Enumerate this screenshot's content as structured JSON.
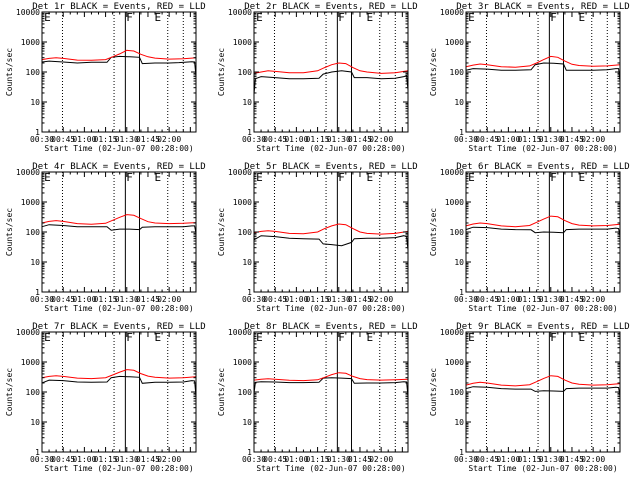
{
  "figure": {
    "xlabel": "Start Time (02-Jun-07 00:28:00)",
    "ylabel": "Counts/sec",
    "x_ticks": [
      "00:30",
      "00:45",
      "01:00",
      "01:15",
      "01:30",
      "01:45",
      "02:00"
    ],
    "y_ticks": [
      "1",
      "10",
      "100",
      "1000",
      "10000"
    ],
    "colors": {
      "events": "#000000",
      "lld": "#ff0000",
      "axes": "#000000"
    }
  },
  "chart_data": [
    {
      "type": "line",
      "title": "Det 1r BLACK = Events, RED = LLD",
      "markers": [
        "E",
        "F",
        "E"
      ],
      "x_range": [
        30,
        139
      ],
      "ylim": [
        1,
        10000
      ],
      "dotted_lines_min": [
        44.5,
        81,
        119,
        130
      ],
      "solid_lines_min": [
        89,
        99
      ],
      "series": [
        {
          "name": "Events",
          "color": "#000000",
          "x": [
            30,
            35,
            45,
            55,
            65,
            76,
            79,
            85,
            92,
            99,
            101,
            110,
            120,
            127,
            136,
            138,
            139
          ],
          "values": [
            215,
            230,
            215,
            200,
            210,
            210,
            310,
            330,
            320,
            310,
            190,
            200,
            200,
            205,
            220,
            215,
            70
          ]
        },
        {
          "name": "LLD",
          "color": "#ff0000",
          "x": [
            30,
            35,
            40,
            45,
            55,
            65,
            75,
            80,
            85,
            90,
            95,
            100,
            105,
            110,
            120,
            130,
            136,
            139
          ],
          "values": [
            260,
            285,
            300,
            285,
            250,
            245,
            260,
            320,
            400,
            530,
            500,
            390,
            320,
            290,
            270,
            275,
            290,
            300
          ]
        }
      ]
    },
    {
      "type": "line",
      "title": "Det 2r BLACK = Events, RED = LLD",
      "markers": [
        "E",
        "F",
        "E"
      ],
      "x_range": [
        30,
        139
      ],
      "ylim": [
        1,
        10000
      ],
      "dotted_lines_min": [
        44.5,
        81,
        119,
        130
      ],
      "solid_lines_min": [
        89,
        99
      ],
      "series": [
        {
          "name": "Events",
          "color": "#000000",
          "x": [
            30,
            31,
            35,
            45,
            55,
            65,
            76,
            79,
            85,
            92,
            99,
            101,
            110,
            120,
            130,
            136,
            138,
            139
          ],
          "values": [
            18,
            60,
            70,
            65,
            60,
            60,
            62,
            85,
            100,
            110,
            100,
            65,
            65,
            60,
            62,
            70,
            75,
            25
          ]
        },
        {
          "name": "LLD",
          "color": "#ff0000",
          "x": [
            30,
            35,
            40,
            45,
            55,
            65,
            75,
            80,
            85,
            90,
            95,
            100,
            105,
            110,
            120,
            130,
            139
          ],
          "values": [
            90,
            100,
            110,
            105,
            95,
            95,
            110,
            140,
            175,
            200,
            190,
            140,
            110,
            100,
            90,
            95,
            110
          ]
        }
      ]
    },
    {
      "type": "line",
      "title": "Det 3r BLACK = Events, RED = LLD",
      "markers": [
        "E",
        "F",
        "E"
      ],
      "x_range": [
        30,
        139
      ],
      "ylim": [
        1,
        10000
      ],
      "dotted_lines_min": [
        44.5,
        81,
        119,
        130
      ],
      "solid_lines_min": [
        89,
        99
      ],
      "series": [
        {
          "name": "Events",
          "color": "#000000",
          "x": [
            30,
            35,
            45,
            55,
            65,
            76,
            79,
            85,
            92,
            99,
            101,
            110,
            120,
            130,
            136,
            138,
            139
          ],
          "values": [
            115,
            130,
            125,
            115,
            115,
            118,
            175,
            200,
            195,
            185,
            115,
            115,
            115,
            118,
            130,
            130,
            50
          ]
        },
        {
          "name": "LLD",
          "color": "#ff0000",
          "x": [
            30,
            35,
            40,
            45,
            55,
            65,
            75,
            80,
            85,
            90,
            95,
            100,
            105,
            110,
            120,
            130,
            139
          ],
          "values": [
            150,
            170,
            185,
            175,
            150,
            145,
            160,
            200,
            260,
            330,
            310,
            230,
            180,
            165,
            155,
            160,
            175
          ]
        }
      ]
    },
    {
      "type": "line",
      "title": "Det 4r BLACK = Events, RED = LLD",
      "markers": [
        "E",
        "F",
        "E"
      ],
      "x_range": [
        30,
        139
      ],
      "ylim": [
        1,
        10000
      ],
      "dotted_lines_min": [
        44.5,
        81,
        119,
        130
      ],
      "solid_lines_min": [
        89,
        99
      ],
      "series": [
        {
          "name": "Events",
          "color": "#000000",
          "x": [
            30,
            35,
            45,
            55,
            65,
            76,
            79,
            85,
            92,
            99,
            101,
            110,
            120,
            130,
            136,
            138,
            139
          ],
          "values": [
            150,
            175,
            165,
            150,
            150,
            150,
            115,
            125,
            125,
            120,
            145,
            150,
            150,
            150,
            160,
            160,
            90
          ]
        },
        {
          "name": "LLD",
          "color": "#ff0000",
          "x": [
            30,
            35,
            40,
            45,
            55,
            65,
            75,
            80,
            85,
            90,
            95,
            100,
            105,
            110,
            120,
            130,
            139
          ],
          "values": [
            200,
            225,
            240,
            225,
            190,
            180,
            195,
            245,
            310,
            380,
            360,
            280,
            220,
            200,
            190,
            195,
            205
          ]
        }
      ]
    },
    {
      "type": "line",
      "title": "Det 5r BLACK = Events, RED = LLD",
      "markers": [
        "E",
        "F",
        "E"
      ],
      "x_range": [
        30,
        139
      ],
      "ylim": [
        1,
        10000
      ],
      "dotted_lines_min": [
        44.5,
        81,
        119,
        130
      ],
      "solid_lines_min": [
        89,
        99
      ],
      "series": [
        {
          "name": "Events",
          "color": "#000000",
          "x": [
            30,
            35,
            45,
            55,
            65,
            76,
            79,
            85,
            92,
            99,
            101,
            110,
            120,
            130,
            136,
            138,
            139
          ],
          "values": [
            55,
            75,
            70,
            62,
            60,
            58,
            40,
            38,
            35,
            45,
            60,
            62,
            62,
            65,
            75,
            70,
            25
          ]
        },
        {
          "name": "LLD",
          "color": "#ff0000",
          "x": [
            30,
            35,
            40,
            45,
            55,
            65,
            75,
            80,
            85,
            90,
            95,
            100,
            105,
            110,
            120,
            130,
            139
          ],
          "values": [
            95,
            105,
            110,
            105,
            90,
            88,
            100,
            130,
            160,
            185,
            175,
            130,
            100,
            90,
            85,
            90,
            105
          ]
        }
      ]
    },
    {
      "type": "line",
      "title": "Det 6r BLACK = Events, RED = LLD",
      "markers": [
        "E",
        "F",
        "E"
      ],
      "x_range": [
        30,
        139
      ],
      "ylim": [
        1,
        10000
      ],
      "dotted_lines_min": [
        44.5,
        81,
        119,
        130
      ],
      "solid_lines_min": [
        89,
        99
      ],
      "series": [
        {
          "name": "Events",
          "color": "#000000",
          "x": [
            30,
            35,
            45,
            55,
            65,
            76,
            79,
            85,
            92,
            99,
            101,
            110,
            120,
            130,
            136,
            138,
            139
          ],
          "values": [
            120,
            145,
            140,
            125,
            120,
            118,
            95,
            100,
            98,
            95,
            120,
            125,
            125,
            125,
            135,
            130,
            70
          ]
        },
        {
          "name": "LLD",
          "color": "#ff0000",
          "x": [
            30,
            35,
            40,
            45,
            55,
            65,
            75,
            80,
            85,
            90,
            95,
            100,
            105,
            110,
            120,
            130,
            139
          ],
          "values": [
            160,
            185,
            200,
            190,
            160,
            150,
            165,
            210,
            270,
            340,
            320,
            240,
            190,
            170,
            160,
            165,
            180
          ]
        }
      ]
    },
    {
      "type": "line",
      "title": "Det 7r BLACK = Events, RED = LLD",
      "markers": [
        "E",
        "F",
        "E"
      ],
      "x_range": [
        30,
        139
      ],
      "ylim": [
        1,
        10000
      ],
      "dotted_lines_min": [
        44.5,
        81,
        119,
        130
      ],
      "solid_lines_min": [
        89,
        99
      ],
      "series": [
        {
          "name": "Events",
          "color": "#000000",
          "x": [
            30,
            35,
            45,
            55,
            65,
            76,
            79,
            85,
            92,
            99,
            101,
            110,
            120,
            130,
            136,
            138,
            139
          ],
          "values": [
            200,
            250,
            240,
            215,
            210,
            215,
            300,
            330,
            320,
            310,
            195,
            210,
            210,
            215,
            240,
            235,
            70
          ]
        },
        {
          "name": "LLD",
          "color": "#ff0000",
          "x": [
            30,
            35,
            40,
            45,
            55,
            65,
            75,
            80,
            85,
            90,
            95,
            100,
            105,
            110,
            120,
            130,
            139
          ],
          "values": [
            300,
            330,
            350,
            330,
            290,
            280,
            300,
            370,
            460,
            560,
            530,
            410,
            340,
            310,
            290,
            300,
            320
          ]
        }
      ]
    },
    {
      "type": "line",
      "title": "Det 8r BLACK = Events, RED = LLD",
      "markers": [
        "E",
        "F",
        "E"
      ],
      "x_range": [
        30,
        139
      ],
      "ylim": [
        1,
        10000
      ],
      "dotted_lines_min": [
        44.5,
        81,
        119,
        130
      ],
      "solid_lines_min": [
        89,
        99
      ],
      "series": [
        {
          "name": "Events",
          "color": "#000000",
          "x": [
            30,
            31,
            35,
            45,
            55,
            65,
            76,
            79,
            85,
            92,
            99,
            101,
            110,
            120,
            130,
            136,
            138,
            139
          ],
          "values": [
            90,
            210,
            220,
            215,
            205,
            205,
            210,
            290,
            300,
            290,
            280,
            195,
            200,
            200,
            205,
            220,
            215,
            70
          ]
        },
        {
          "name": "LLD",
          "color": "#ff0000",
          "x": [
            30,
            35,
            40,
            45,
            55,
            65,
            75,
            80,
            85,
            90,
            95,
            100,
            105,
            110,
            120,
            130,
            139
          ],
          "values": [
            250,
            265,
            275,
            265,
            245,
            240,
            255,
            310,
            380,
            440,
            420,
            330,
            280,
            260,
            250,
            255,
            265
          ]
        }
      ]
    },
    {
      "type": "line",
      "title": "Det 9r BLACK = Events, RED = LLD",
      "markers": [
        "E",
        "F",
        "E"
      ],
      "x_range": [
        30,
        139
      ],
      "ylim": [
        1,
        10000
      ],
      "dotted_lines_min": [
        44.5,
        81,
        119,
        130
      ],
      "solid_lines_min": [
        89,
        99
      ],
      "series": [
        {
          "name": "Events",
          "color": "#000000",
          "x": [
            30,
            35,
            45,
            55,
            65,
            76,
            79,
            85,
            92,
            99,
            101,
            110,
            120,
            130,
            136,
            138,
            139
          ],
          "values": [
            130,
            150,
            145,
            130,
            125,
            125,
            105,
            110,
            108,
            105,
            130,
            135,
            135,
            135,
            145,
            140,
            70
          ]
        },
        {
          "name": "LLD",
          "color": "#ff0000",
          "x": [
            30,
            35,
            40,
            45,
            55,
            65,
            75,
            80,
            85,
            90,
            95,
            100,
            105,
            110,
            120,
            130,
            139
          ],
          "values": [
            170,
            195,
            210,
            200,
            170,
            160,
            175,
            220,
            285,
            350,
            330,
            250,
            200,
            180,
            170,
            175,
            190
          ]
        }
      ]
    }
  ]
}
